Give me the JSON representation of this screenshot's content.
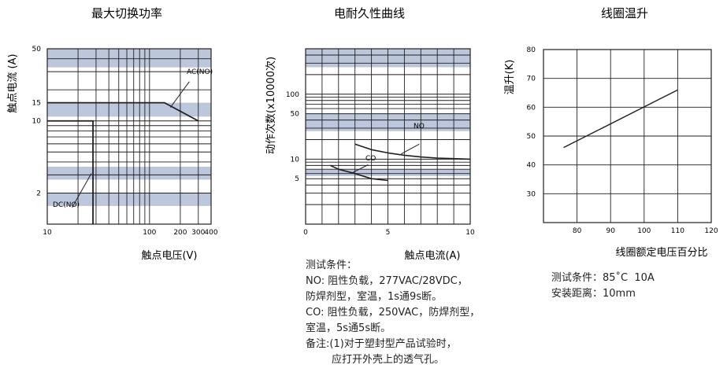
{
  "charts": [
    {
      "title": "最大切换功率",
      "xlabel": "触点电压(V)",
      "ylabel": "触点电流 (A)",
      "annotations": [
        "AC(NO)",
        "DC(NO)"
      ]
    },
    {
      "title": "电耐久性曲线",
      "xlabel": "触点电流(A)",
      "ylabel": "动作次数(x10000次)",
      "annotations": [
        "NO",
        "CO"
      ]
    },
    {
      "title": "线圈温升",
      "xlabel": "线圈额定电压百分比",
      "ylabel": "温升(K)",
      "annotations": []
    }
  ],
  "notes_endurance": [
    "测试条件：",
    "NO: 阻性负载，277VAC/28VDC，",
    "防焊剂型，室温，1s通9s断。",
    "CO: 阻性负载，250VAC，防焊剂型，",
    "室温，5s通5s断。",
    "备注:(1)对于塑封型产品试验时，",
    "        应打开外壳上的透气孔。"
  ],
  "notes_temp": [
    "测试条件：85˚C  10A",
    "安装距离：10mm"
  ],
  "colors": {
    "band": "#bcc7dc",
    "line": "#231f20"
  },
  "chart_data": [
    {
      "type": "line",
      "title": "最大切换功率",
      "xlabel": "触点电压(V)",
      "ylabel": "触点电流 (A)",
      "x_scale": "log",
      "y_scale": "log",
      "xlim": [
        10,
        400
      ],
      "ylim": [
        1,
        50
      ],
      "x_ticks": [
        10,
        100,
        200,
        300,
        400
      ],
      "y_ticks": [
        2,
        10,
        15,
        50
      ],
      "grid": true,
      "series": [
        {
          "name": "AC(NO)",
          "x": [
            10,
            100,
            140,
            300
          ],
          "y": [
            15,
            15,
            15,
            10
          ]
        },
        {
          "name": "DC(NO)",
          "x": [
            10,
            28,
            28
          ],
          "y": [
            10,
            10,
            1
          ]
        }
      ]
    },
    {
      "type": "line",
      "title": "电耐久性曲线",
      "xlabel": "触点电流(A)",
      "ylabel": "动作次数(x10000次)",
      "xlim": [
        0,
        10
      ],
      "x_ticks": [
        0,
        5,
        10
      ],
      "y_scale": "log",
      "ylim": [
        1,
        500
      ],
      "y_ticks": [
        5,
        10,
        50,
        100
      ],
      "grid": true,
      "series": [
        {
          "name": "NO",
          "x": [
            3,
            4,
            5,
            6,
            7,
            8,
            9,
            10
          ],
          "y": [
            17,
            14,
            12.5,
            11.5,
            10.8,
            10.4,
            10.2,
            10
          ]
        },
        {
          "name": "CO",
          "x": [
            1.5,
            2,
            3,
            4,
            5
          ],
          "y": [
            8,
            7,
            6,
            5,
            4.7
          ]
        }
      ]
    },
    {
      "type": "line",
      "title": "线圈温升",
      "xlabel": "线圈额定电压百分比",
      "ylabel": "温升(K)",
      "xlim": [
        70,
        120
      ],
      "ylim": [
        20,
        80
      ],
      "x_ticks": [
        80,
        90,
        100,
        110,
        120
      ],
      "y_ticks": [
        30,
        40,
        50,
        60,
        70,
        80
      ],
      "grid": true,
      "series": [
        {
          "name": "",
          "x": [
            76,
            110
          ],
          "y": [
            46,
            66
          ]
        }
      ]
    }
  ]
}
